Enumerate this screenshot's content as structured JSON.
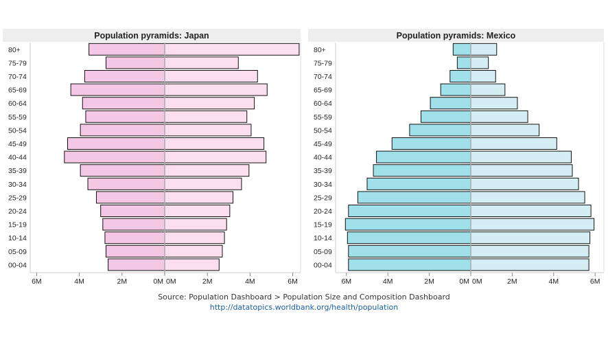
{
  "chart_data": [
    {
      "type": "bar",
      "orientation": "horizontal",
      "title": "Population pyramids: Japan",
      "categories": [
        "80+",
        "75-79",
        "70-74",
        "65-69",
        "60-64",
        "55-59",
        "50-54",
        "45-49",
        "40-44",
        "35-39",
        "30-34",
        "25-29",
        "20-24",
        "15-19",
        "10-14",
        "05-09",
        "00-04"
      ],
      "series": [
        {
          "side": "left",
          "color": "#f4c7e4",
          "values": [
            3.55,
            2.75,
            3.75,
            4.4,
            3.85,
            3.7,
            3.95,
            4.55,
            4.7,
            3.95,
            3.6,
            3.2,
            3.0,
            2.9,
            2.8,
            2.75,
            2.65
          ]
        },
        {
          "side": "right",
          "color": "#fbdfee",
          "values": [
            6.3,
            3.45,
            4.35,
            4.8,
            4.2,
            3.85,
            4.05,
            4.65,
            4.75,
            3.95,
            3.6,
            3.2,
            3.05,
            2.9,
            2.8,
            2.7,
            2.55
          ]
        }
      ],
      "x_ticks_left": [
        "6M",
        "4M",
        "2M",
        "0M"
      ],
      "x_ticks_right": [
        "0M",
        "2M",
        "4M",
        "6M"
      ],
      "xlim": [
        0,
        6.3
      ]
    },
    {
      "type": "bar",
      "orientation": "horizontal",
      "title": "Population pyramids: Mexico",
      "categories": [
        "80+",
        "75-79",
        "70-74",
        "65-69",
        "60-64",
        "55-59",
        "50-54",
        "45-49",
        "40-44",
        "35-39",
        "30-34",
        "25-29",
        "20-24",
        "15-19",
        "10-14",
        "05-09",
        "00-04"
      ],
      "series": [
        {
          "side": "left",
          "color": "#a0e0ea",
          "values": [
            0.85,
            0.65,
            1.0,
            1.45,
            1.95,
            2.4,
            2.95,
            3.8,
            4.55,
            4.7,
            5.0,
            5.45,
            5.9,
            6.05,
            5.95,
            5.9,
            5.9
          ]
        },
        {
          "side": "right",
          "color": "#d4eef4",
          "values": [
            1.25,
            0.85,
            1.2,
            1.65,
            2.25,
            2.75,
            3.3,
            4.15,
            4.85,
            4.9,
            5.2,
            5.5,
            5.8,
            5.95,
            5.75,
            5.7,
            5.7
          ]
        }
      ],
      "x_ticks_left": [
        "6M",
        "4M",
        "2M",
        "0M"
      ],
      "x_ticks_right": [
        "0M",
        "2M",
        "4M",
        "6M"
      ],
      "xlim": [
        0,
        6.3
      ]
    }
  ],
  "source": {
    "text": "Source: Population Dashboard > Population Size and Composition Dashboard",
    "link": "http://datatopics.worldbank.org/health/population"
  },
  "colors": {
    "title_bar": "#eeeeee",
    "center_line": "#aaaaaa",
    "frame": "#bbbbbb"
  }
}
